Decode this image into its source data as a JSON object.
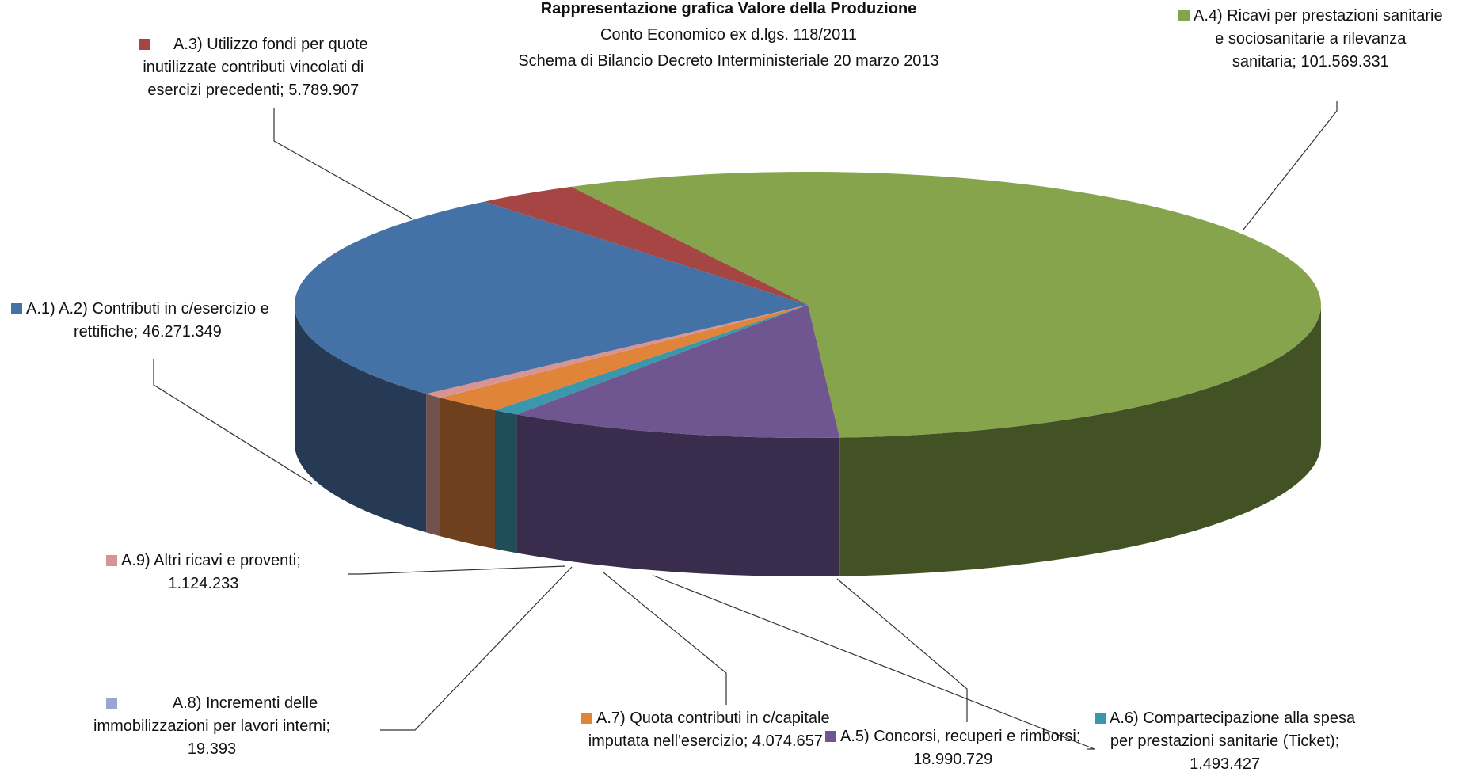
{
  "chart_data": {
    "type": "pie",
    "variant": "3d",
    "title": "Rappresentazione grafica Valore della Produzione",
    "subtitle": [
      "Conto Economico ex d.lgs. 118/2011",
      "Schema di Bilancio Decreto Interministeriale 20 marzo 2013"
    ],
    "legend": "none",
    "slices": [
      {
        "id": "a4",
        "color": "#86A44C",
        "side_color": "#435224",
        "value": 101569331,
        "label_lines": [
          "A.4) Ricavi per prestazioni sanitarie",
          "e sociosanitarie a rilevanza",
          "sanitaria; 101.569.331"
        ]
      },
      {
        "id": "a5",
        "color": "#6F5690",
        "side_color": "#3A2C4C",
        "value": 18990729,
        "label_lines": [
          "A.5) Concorsi, recuperi e rimborsi;",
          "18.990.729"
        ]
      },
      {
        "id": "a6",
        "color": "#3B97AC",
        "side_color": "#1F4D58",
        "value": 1493427,
        "label_lines": [
          "A.6) Compartecipazione alla spesa",
          "per prestazioni sanitarie (Ticket);",
          "1.493.427"
        ]
      },
      {
        "id": "a7",
        "color": "#E0843A",
        "side_color": "#6F401E",
        "value": 4074657,
        "label_lines": [
          "A.7) Quota contributi in c/capitale",
          "imputata nell'esercizio; 4.074.657"
        ]
      },
      {
        "id": "a8",
        "color": "#94A9D0",
        "side_color": "#4A5468",
        "value": 19393,
        "label_lines": [
          "A.8) Incrementi delle",
          "immobilizzazioni per lavori interni;",
          "19.393"
        ]
      },
      {
        "id": "a9",
        "color": "#D89493",
        "side_color": "#72514F",
        "value": 1124233,
        "label_lines": [
          "A.9) Altri ricavi e proventi;",
          "1.124.233"
        ]
      },
      {
        "id": "a1",
        "color": "#4472A6",
        "side_color": "#263A56",
        "value": 46271349,
        "label_lines": [
          "A.1) A.2) Contributi in c/esercizio e",
          "rettifiche; 46.271.349"
        ]
      },
      {
        "id": "a3",
        "color": "#A64644",
        "side_color": "#5A2624",
        "value": 5789907,
        "label_lines": [
          "A.3) Utilizzo fondi per quote",
          "inutilizzate contributi vincolati di",
          "esercizi precedenti; 5.789.907"
        ]
      }
    ]
  }
}
